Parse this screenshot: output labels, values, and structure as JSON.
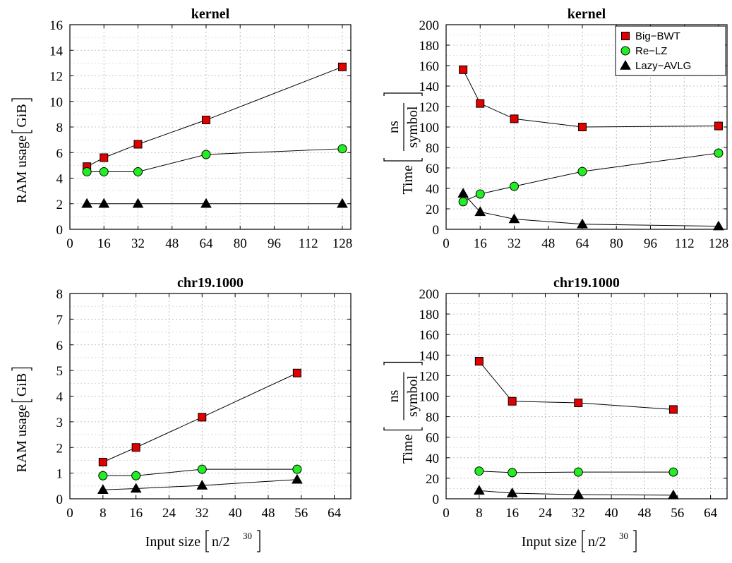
{
  "colors": {
    "big_bwt": "#e00000",
    "re_lz": "#22ee22",
    "lazy_avlg": "#000000",
    "grid": "#b0b0b0"
  },
  "legend": [
    {
      "name": "Big−BWT",
      "marker": "square"
    },
    {
      "name": "Re−LZ",
      "marker": "circle"
    },
    {
      "name": "Lazy−AVLG",
      "marker": "triangle"
    }
  ],
  "axis_text": {
    "ram_prefix": "RAM usage",
    "ram_unit": "GiB",
    "time_prefix": "Time",
    "time_num": "ns",
    "time_den": "symbol",
    "input_prefix": "Input size",
    "input_unit_base": "n/2",
    "input_unit_exp": "30"
  },
  "chart_data": [
    {
      "type": "line",
      "title": "kernel",
      "ylabel": "RAM usage [GiB]",
      "xlim": [
        0,
        132
      ],
      "ylim": [
        0,
        16
      ],
      "xticks": [
        0,
        16,
        32,
        48,
        64,
        80,
        96,
        112,
        128
      ],
      "yticks": [
        0,
        2,
        4,
        6,
        8,
        10,
        12,
        14,
        16
      ],
      "grid": true,
      "series": [
        {
          "name": "Big−BWT",
          "x": [
            8,
            16,
            32,
            64,
            128
          ],
          "y": [
            4.9,
            5.6,
            6.65,
            8.55,
            12.7
          ]
        },
        {
          "name": "Re−LZ",
          "x": [
            8,
            16,
            32,
            64,
            128
          ],
          "y": [
            4.5,
            4.5,
            4.5,
            5.85,
            6.3
          ]
        },
        {
          "name": "Lazy−AVLG",
          "x": [
            8,
            16,
            32,
            64,
            128
          ],
          "y": [
            2.0,
            2.0,
            2.0,
            2.0,
            2.0
          ]
        }
      ]
    },
    {
      "type": "line",
      "title": "kernel",
      "ylabel": "Time [ns/symbol]",
      "xlim": [
        0,
        132
      ],
      "ylim": [
        0,
        200
      ],
      "xticks": [
        0,
        16,
        32,
        48,
        64,
        80,
        96,
        112,
        128
      ],
      "yticks": [
        0,
        20,
        40,
        60,
        80,
        100,
        120,
        140,
        160,
        180,
        200
      ],
      "grid": true,
      "legend_position": "top-right",
      "series": [
        {
          "name": "Big−BWT",
          "x": [
            8,
            16,
            32,
            64,
            128
          ],
          "y": [
            156,
            123,
            108,
            100,
            101
          ]
        },
        {
          "name": "Re−LZ",
          "x": [
            8,
            16,
            32,
            64,
            128
          ],
          "y": [
            27,
            34.5,
            42,
            56.5,
            74.5
          ]
        },
        {
          "name": "Lazy−AVLG",
          "x": [
            8,
            16,
            32,
            64,
            128
          ],
          "y": [
            35,
            17,
            10,
            5,
            3
          ]
        }
      ]
    },
    {
      "type": "line",
      "title": "chr19.1000",
      "xlabel": "Input size [n/2^30]",
      "ylabel": "RAM usage [GiB]",
      "xlim": [
        0,
        68
      ],
      "ylim": [
        0,
        8
      ],
      "xticks": [
        0,
        8,
        16,
        24,
        32,
        40,
        48,
        56,
        64
      ],
      "yticks": [
        0,
        1,
        2,
        3,
        4,
        5,
        6,
        7,
        8
      ],
      "grid": true,
      "series": [
        {
          "name": "Big−BWT",
          "x": [
            8,
            16,
            32,
            55
          ],
          "y": [
            1.43,
            2.0,
            3.18,
            4.9
          ]
        },
        {
          "name": "Re−LZ",
          "x": [
            8,
            16,
            32,
            55
          ],
          "y": [
            0.9,
            0.9,
            1.15,
            1.15
          ]
        },
        {
          "name": "Lazy−AVLG",
          "x": [
            8,
            16,
            32,
            55
          ],
          "y": [
            0.35,
            0.4,
            0.52,
            0.75
          ]
        }
      ]
    },
    {
      "type": "line",
      "title": "chr19.1000",
      "xlabel": "Input size [n/2^30]",
      "ylabel": "Time [ns/symbol]",
      "xlim": [
        0,
        68
      ],
      "ylim": [
        0,
        200
      ],
      "xticks": [
        0,
        8,
        16,
        24,
        32,
        40,
        48,
        56,
        64
      ],
      "yticks": [
        0,
        20,
        40,
        60,
        80,
        100,
        120,
        140,
        160,
        180,
        200
      ],
      "grid": true,
      "series": [
        {
          "name": "Big−BWT",
          "x": [
            8,
            16,
            32,
            55
          ],
          "y": [
            134,
            95,
            93.5,
            87
          ]
        },
        {
          "name": "Re−LZ",
          "x": [
            8,
            16,
            32,
            55
          ],
          "y": [
            27,
            25.5,
            26,
            26
          ]
        },
        {
          "name": "Lazy−AVLG",
          "x": [
            8,
            16,
            32,
            55
          ],
          "y": [
            8,
            5.5,
            4,
            3.5
          ]
        }
      ]
    }
  ]
}
